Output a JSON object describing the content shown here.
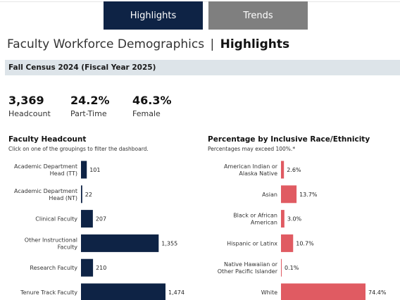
{
  "tabs": [
    {
      "label": "Highlights",
      "active": true,
      "color": "#0e2345"
    },
    {
      "label": "Trends",
      "active": false,
      "color": "#7f7f7f"
    }
  ],
  "page_title": {
    "main": "Faculty Workforce Demographics",
    "separator": "|",
    "highlight": "Highlights"
  },
  "census_label": "Fall Census 2024 (Fiscal Year 2025)",
  "kpis": [
    {
      "value": "3,369",
      "label": "Headcount"
    },
    {
      "value": "24.2%",
      "label": "Part-Time"
    },
    {
      "value": "46.3%",
      "label": "Female"
    }
  ],
  "colors": {
    "headcount_bar": "#0e2345",
    "race_bar": "#e05b62",
    "census_bg": "#dde4e9"
  },
  "chart_data": [
    {
      "type": "bar",
      "orientation": "horizontal",
      "title": "Faculty Headcount",
      "subtitle": "Click on one of the groupings to filter the dashboard.",
      "categories": [
        [
          "Academic Department",
          "Head (TT)"
        ],
        [
          "Academic Department",
          "Head (NT)"
        ],
        [
          "Clinical Faculty"
        ],
        [
          "Other Instructional",
          "Faculty"
        ],
        [
          "Research Faculty"
        ],
        [
          "Tenure Track Faculty"
        ]
      ],
      "values": [
        101,
        22,
        207,
        1355,
        210,
        1474
      ],
      "value_labels": [
        "101",
        "22",
        "207",
        "1,355",
        "210",
        "1,474"
      ],
      "xlim": [
        0,
        1474
      ]
    },
    {
      "type": "bar",
      "orientation": "horizontal",
      "title": "Percentage by Inclusive Race/Ethnicity",
      "subtitle": "Percentages may exceed 100%.*",
      "categories": [
        [
          "American Indian or",
          "Alaska Native"
        ],
        [
          "Asian"
        ],
        [
          "Black or African",
          "American"
        ],
        [
          "Hispanic or Latinx"
        ],
        [
          "Native Hawaiian or",
          "Other Pacific Islander"
        ],
        [
          "White"
        ]
      ],
      "values": [
        2.6,
        13.7,
        3.0,
        10.7,
        0.1,
        74.4
      ],
      "value_labels": [
        "2.6%",
        "13.7%",
        "3.0%",
        "10.7%",
        "0.1%",
        "74.4%"
      ],
      "xlim": [
        0,
        74.4
      ]
    }
  ]
}
